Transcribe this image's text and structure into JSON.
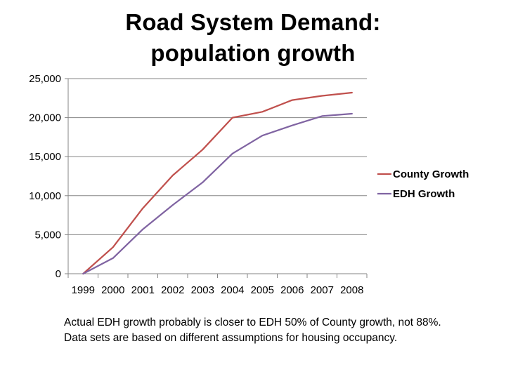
{
  "slide": {
    "title_line1": "Road System Demand:",
    "title_line2": "population growth"
  },
  "note": {
    "line1": "Actual EDH growth probably is closer to EDH 50% of County growth, not 88%.",
    "line2": "Data sets are based on different assumptions for housing occupancy."
  },
  "colors": {
    "county": "#C0504D",
    "edh": "#8064A2",
    "gridline": "#868686",
    "axis": "#868686"
  },
  "chart_data": {
    "type": "line",
    "title": "Road System Demand: population growth",
    "xlabel": "",
    "ylabel": "",
    "categories": [
      "1999",
      "2000",
      "2001",
      "2002",
      "2003",
      "2004",
      "2005",
      "2006",
      "2007",
      "2008"
    ],
    "series": [
      {
        "name": "County Growth",
        "color": "#C0504D",
        "values": [
          0,
          3400,
          8400,
          12600,
          15900,
          20000,
          20750,
          22250,
          22800,
          23200
        ]
      },
      {
        "name": "EDH Growth",
        "color": "#8064A2",
        "values": [
          0,
          2000,
          5700,
          8800,
          11700,
          15400,
          17700,
          19000,
          20200,
          20500
        ]
      }
    ],
    "ylim": [
      0,
      25000
    ],
    "yticks": [
      0,
      5000,
      10000,
      15000,
      20000,
      25000
    ],
    "ytick_labels": [
      "0",
      "5,000",
      "10,000",
      "15,000",
      "20,000",
      "25,000"
    ],
    "grid": true,
    "legend_position": "right"
  }
}
